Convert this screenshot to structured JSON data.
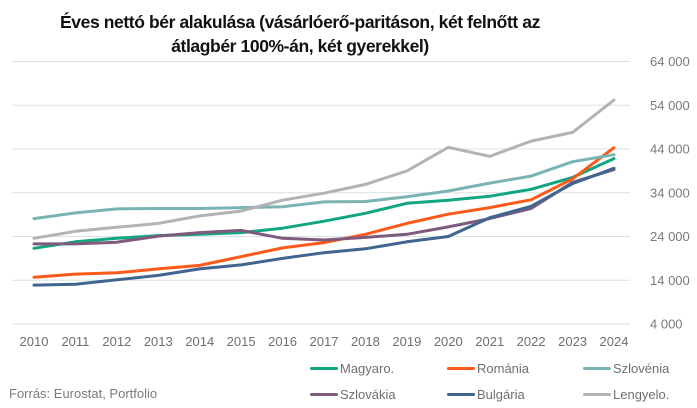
{
  "chart_data": {
    "type": "line",
    "title": "Éves nettó bér alakulása (vásárlóerő-paritáson, két felnőtt az átlagbér 100%-án, két gyerekkel)",
    "title_lines": [
      "Éves nettó bér alakulása (vásárlóerő-paritáson, két felnőtt az",
      "átlagbér 100%-án, két gyerekkel)"
    ],
    "xlabel": "",
    "ylabel": "",
    "x": [
      "2010",
      "2011",
      "2012",
      "2013",
      "2014",
      "2015",
      "2016",
      "2017",
      "2018",
      "2019",
      "2020",
      "2021",
      "2022",
      "2023",
      "2024"
    ],
    "ylim": [
      4000,
      64000
    ],
    "yticks": [
      4000,
      14000,
      24000,
      34000,
      44000,
      54000,
      64000
    ],
    "ytick_labels": [
      "4 000",
      "14 000",
      "24 000",
      "34 000",
      "44 000",
      "54 000",
      "64 000"
    ],
    "yaxis_side": "right",
    "grid": true,
    "legend_position": "bottom-right",
    "series": [
      {
        "name": "Magyaro.",
        "color": "#12a582",
        "values": [
          21300,
          22800,
          23600,
          24200,
          24500,
          24900,
          25900,
          27500,
          29300,
          31600,
          32300,
          33200,
          34800,
          37500,
          41800
        ]
      },
      {
        "name": "Románia",
        "color": "#fc5a1a",
        "values": [
          14700,
          15400,
          15700,
          16600,
          17400,
          19400,
          21400,
          22600,
          24500,
          27000,
          29100,
          30600,
          32400,
          37200,
          44300
        ]
      },
      {
        "name": "Szlovénia",
        "color": "#7ab3b3",
        "values": [
          28100,
          29400,
          30300,
          30400,
          30400,
          30600,
          30800,
          31900,
          32000,
          33100,
          34400,
          36200,
          37800,
          41100,
          42700
        ]
      },
      {
        "name": "Szlovákia",
        "color": "#7e5b7c",
        "values": [
          22300,
          22300,
          22700,
          24100,
          24900,
          25400,
          23600,
          23200,
          23800,
          24500,
          26200,
          28100,
          30400,
          36400,
          39300
        ]
      },
      {
        "name": "Bulgária",
        "color": "#3f6590",
        "values": [
          12900,
          13100,
          14100,
          15100,
          16600,
          17500,
          19000,
          20300,
          21200,
          22800,
          24000,
          28300,
          30900,
          36100,
          39600
        ]
      },
      {
        "name": "Lengyelo.",
        "color": "#b3b3b3",
        "values": [
          23600,
          25200,
          26100,
          27000,
          28700,
          29800,
          32300,
          33900,
          35900,
          39000,
          44400,
          42300,
          45800,
          47800,
          55200
        ]
      }
    ]
  },
  "source": "Forrás: Eurostat, Portfolio"
}
